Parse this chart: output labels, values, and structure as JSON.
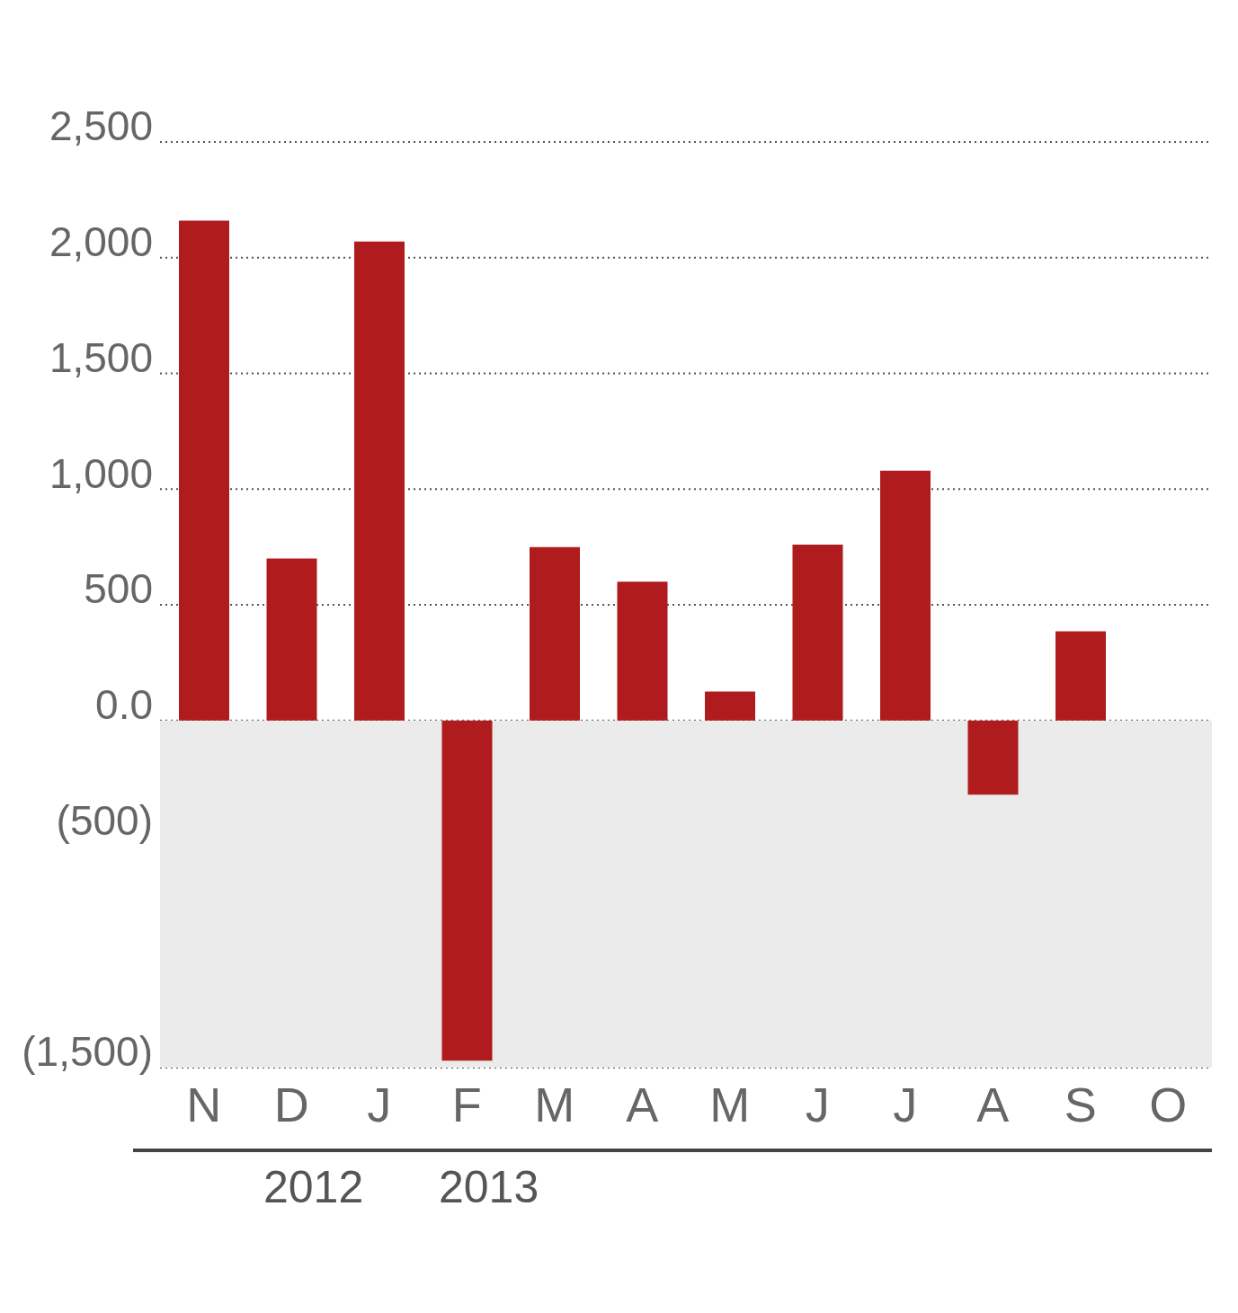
{
  "chart_data": {
    "type": "bar",
    "categories": [
      "N",
      "D",
      "J",
      "F",
      "M",
      "A",
      "M",
      "J",
      "J",
      "A",
      "S",
      "O"
    ],
    "values": [
      2160,
      700,
      2070,
      -1470,
      750,
      600,
      125,
      760,
      1080,
      -320,
      385,
      null
    ],
    "color": "#b01c1e",
    "ylim": [
      -1500,
      2500
    ],
    "yticks": [
      {
        "value": 2500,
        "label": "2,500"
      },
      {
        "value": 2000,
        "label": "2,000"
      },
      {
        "value": 1500,
        "label": "1,500"
      },
      {
        "value": 1000,
        "label": "1,000"
      },
      {
        "value": 500,
        "label": "500"
      },
      {
        "value": 0,
        "label": "0.0"
      },
      {
        "value": -500,
        "label": "(500)"
      },
      {
        "value": -1500,
        "label": "(1,500)"
      }
    ],
    "grid": "y",
    "bands": [
      {
        "axis": "y",
        "from": -1500,
        "to": 0,
        "color": "#ebebeb"
      }
    ],
    "annotations": [
      "2012",
      "2013"
    ]
  }
}
